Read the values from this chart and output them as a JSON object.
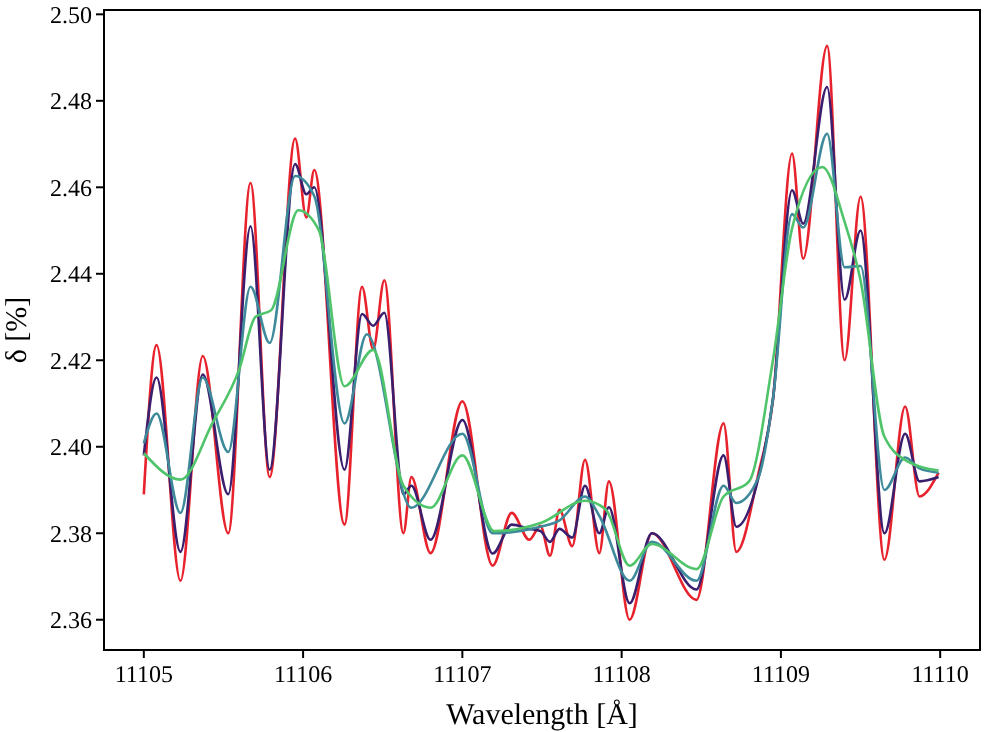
{
  "chart_data": {
    "type": "line",
    "xlabel": "Wavelength [Å]",
    "ylabel": "δ [%]",
    "xlim": [
      11104.75,
      11110.25
    ],
    "xticks": [
      11105,
      11106,
      11107,
      11108,
      11109,
      11110
    ],
    "ylim": [
      2.353,
      2.501
    ],
    "yticks": [
      {
        "value": 2.36,
        "label": "2.36"
      },
      {
        "value": 2.38,
        "label": "2.38"
      },
      {
        "value": 2.4,
        "label": "2.40"
      },
      {
        "value": 2.42,
        "label": "2.42"
      },
      {
        "value": 2.44,
        "label": "2.44"
      },
      {
        "value": 2.46,
        "label": "2.46"
      },
      {
        "value": 2.48,
        "label": "2.48"
      },
      {
        "value": 2.5,
        "label": "2.50"
      }
    ],
    "grid": false,
    "marker": "none",
    "line_style": "solid",
    "series": [
      {
        "color": "#e8222c",
        "x": [
          11105.0,
          11105.08,
          11105.23,
          11105.37,
          11105.53,
          11105.67,
          11105.79,
          11105.95,
          11106.02,
          11106.07,
          11106.26,
          11106.37,
          11106.44,
          11106.51,
          11106.63,
          11106.68,
          11106.8,
          11107.0,
          11107.19,
          11107.31,
          11107.42,
          11107.49,
          11107.55,
          11107.61,
          11107.69,
          11107.77,
          11107.86,
          11107.92,
          11108.05,
          11108.19,
          11108.47,
          11108.64,
          11108.72,
          11108.86,
          11108.95,
          11109.07,
          11109.14,
          11109.29,
          11109.4,
          11109.5,
          11109.65,
          11109.78,
          11109.87,
          11109.99
        ],
        "values": [
          2.389,
          2.4235,
          2.369,
          2.421,
          2.38,
          2.461,
          2.393,
          2.4713,
          2.453,
          2.464,
          2.382,
          2.437,
          2.4225,
          2.4385,
          2.38,
          2.393,
          2.3754,
          2.4105,
          2.3725,
          2.3847,
          2.3785,
          2.3817,
          2.3748,
          2.3854,
          2.377,
          2.397,
          2.3754,
          2.392,
          2.36,
          2.38,
          2.3646,
          2.4054,
          2.3757,
          2.394,
          2.4108,
          2.4678,
          2.4435,
          2.4927,
          2.42,
          2.4578,
          2.3739,
          2.4093,
          2.3885,
          2.394
        ]
      },
      {
        "color": "#3b1f6e",
        "x": [
          11105.0,
          11105.08,
          11105.23,
          11105.37,
          11105.53,
          11105.67,
          11105.79,
          11105.95,
          11106.02,
          11106.07,
          11106.26,
          11106.37,
          11106.44,
          11106.51,
          11106.63,
          11106.68,
          11106.8,
          11107.0,
          11107.19,
          11107.31,
          11107.42,
          11107.49,
          11107.55,
          11107.61,
          11107.69,
          11107.77,
          11107.86,
          11107.92,
          11108.05,
          11108.19,
          11108.47,
          11108.64,
          11108.72,
          11108.86,
          11108.95,
          11109.07,
          11109.14,
          11109.29,
          11109.4,
          11109.5,
          11109.65,
          11109.78,
          11109.87,
          11109.99
        ],
        "values": [
          2.398,
          2.416,
          2.3757,
          2.4167,
          2.389,
          2.451,
          2.3947,
          2.4654,
          2.4584,
          2.46,
          2.3947,
          2.4307,
          2.428,
          2.431,
          2.389,
          2.391,
          2.3785,
          2.4062,
          2.3753,
          2.382,
          2.381,
          2.3805,
          2.378,
          2.381,
          2.379,
          2.391,
          2.38,
          2.386,
          2.3638,
          2.38,
          2.367,
          2.398,
          2.3815,
          2.393,
          2.411,
          2.4593,
          2.4516,
          2.4832,
          2.434,
          2.45,
          2.38,
          2.403,
          2.392,
          2.393
        ]
      },
      {
        "color": "#3e8a9a",
        "x": [
          11105.0,
          11105.08,
          11105.23,
          11105.37,
          11105.53,
          11105.67,
          11105.79,
          11105.95,
          11106.07,
          11106.26,
          11106.4,
          11106.68,
          11107.0,
          11107.19,
          11107.49,
          11107.61,
          11107.77,
          11107.86,
          11108.05,
          11108.19,
          11108.47,
          11108.64,
          11108.72,
          11108.86,
          11108.95,
          11109.07,
          11109.14,
          11109.29,
          11109.4,
          11109.5,
          11109.65,
          11109.78,
          11109.87,
          11109.99
        ],
        "values": [
          2.4008,
          2.4077,
          2.3847,
          2.416,
          2.3988,
          2.437,
          2.424,
          2.4626,
          2.458,
          2.4054,
          2.426,
          2.3859,
          2.403,
          2.38,
          2.3815,
          2.383,
          2.3885,
          2.384,
          2.369,
          2.378,
          2.369,
          2.391,
          2.387,
          2.393,
          2.411,
          2.4538,
          2.4507,
          2.4724,
          2.4415,
          2.4418,
          2.39,
          2.3975,
          2.395,
          2.394
        ]
      },
      {
        "color": "#4fc46a",
        "x": [
          11105.0,
          11105.23,
          11105.43,
          11105.6,
          11105.7,
          11105.8,
          11105.97,
          11106.1,
          11106.26,
          11106.44,
          11106.63,
          11106.8,
          11107.0,
          11107.2,
          11107.5,
          11107.77,
          11107.9,
          11108.05,
          11108.19,
          11108.47,
          11108.64,
          11108.8,
          11108.95,
          11109.07,
          11109.26,
          11109.4,
          11109.5,
          11109.65,
          11109.8,
          11109.99
        ],
        "values": [
          2.3985,
          2.3924,
          2.4054,
          2.418,
          2.43,
          2.4316,
          2.4547,
          2.45,
          2.414,
          2.4224,
          2.391,
          2.3859,
          2.398,
          2.3805,
          2.3825,
          2.3875,
          2.3855,
          2.3725,
          2.3775,
          2.3717,
          2.3885,
          2.392,
          2.42,
          2.4505,
          2.4647,
          2.452,
          2.4385,
          2.4023,
          2.3965,
          2.3945
        ]
      }
    ]
  }
}
